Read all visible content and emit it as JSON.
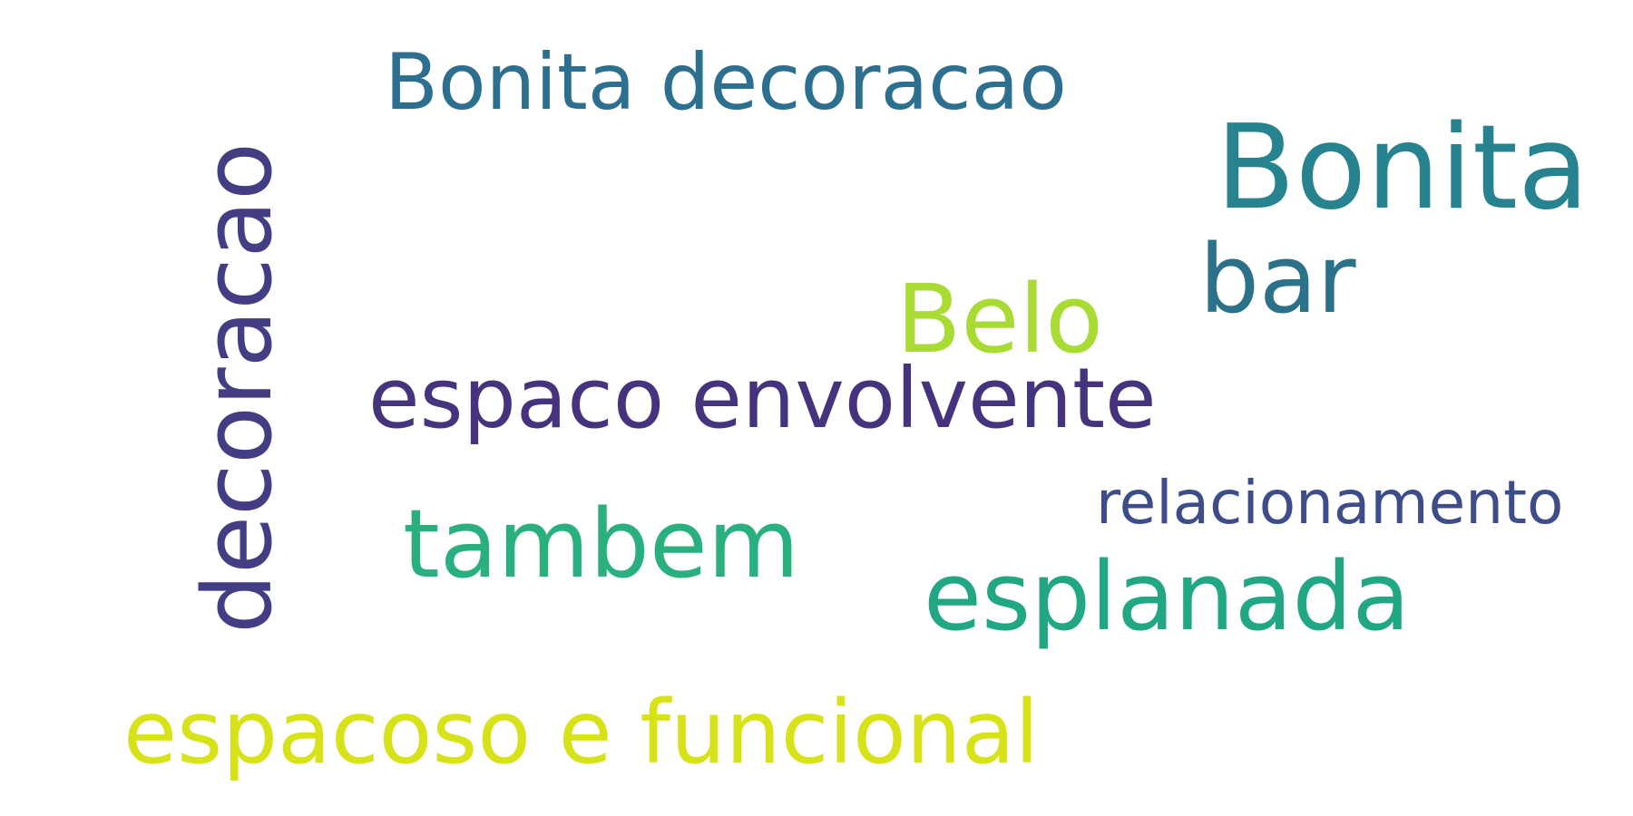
{
  "words": [
    {
      "id": "bonita-decoracao",
      "text": "Bonita decoracao",
      "color": "#2d6f8e"
    },
    {
      "id": "bonita",
      "text": "Bonita",
      "color": "#26838f"
    },
    {
      "id": "bar",
      "text": "bar",
      "color": "#2b7189"
    },
    {
      "id": "belo",
      "text": "Belo",
      "color": "#a8db34"
    },
    {
      "id": "decoracao",
      "text": "decoracao",
      "color": "#433d84"
    },
    {
      "id": "espaco-envolvente",
      "text": "espaco envolvente",
      "color": "#46337e"
    },
    {
      "id": "relacionamento",
      "text": "relacionamento",
      "color": "#3d4d8a"
    },
    {
      "id": "tambem",
      "text": "tambem",
      "color": "#2ab07f"
    },
    {
      "id": "esplanada",
      "text": "esplanada",
      "color": "#22a785"
    },
    {
      "id": "espacoso-e-funcional",
      "text": "espacoso e funcional",
      "color": "#d8e219"
    }
  ]
}
